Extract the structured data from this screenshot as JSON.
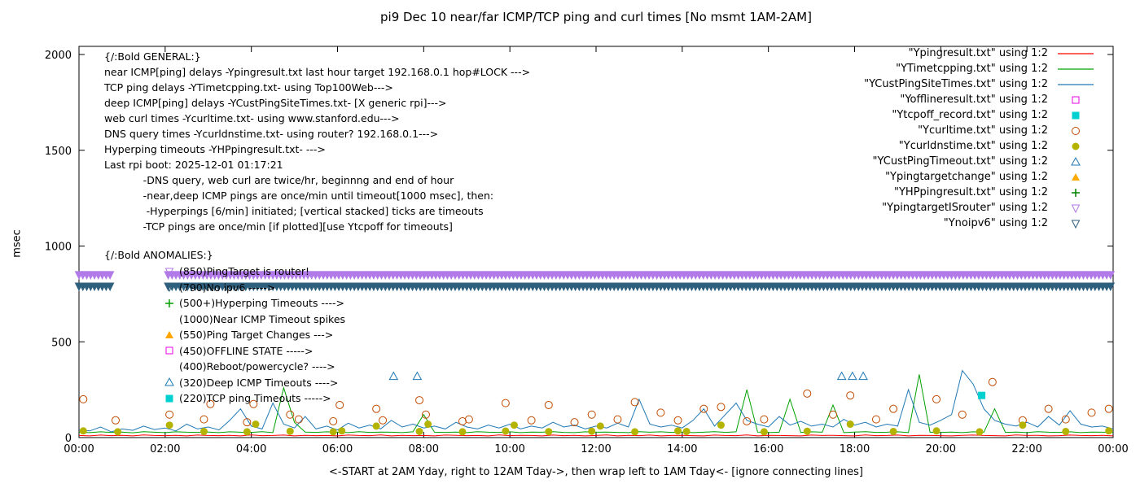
{
  "title": "pi9 Dec 10  near/far ICMP/TCP ping and curl times [No msmt 1AM-2AM]",
  "ylabel": "msec",
  "xlabel": "<-START at 2AM Yday, right to 12AM Tday->, then wrap left to 1AM Tday<- [ignore connecting lines]",
  "general": {
    "lines": [
      "{/:Bold GENERAL:}",
      "near ICMP[ping] delays -Ypingresult.txt last hour target 192.168.0.1 hop#LOCK --->",
      "TCP ping delays -YTimetcpping.txt- using Top100Web--->",
      "deep ICMP[ping] delays -YCustPingSiteTimes.txt- [X generic rpi]--->",
      "web curl times -Ycurltime.txt- using www.stanford.edu--->",
      "DNS query times -Ycurldnstime.txt- using router? 192.168.0.1--->",
      "Hyperping timeouts -YHPpingresult.txt- --->",
      "Last rpi boot: 2025-12-01 01:17:21",
      "            -DNS query, web curl are twice/hr, beginnng and end of hour",
      "            -near,deep ICMP pings are once/min until timeout[1000 msec], then:",
      "             -Hyperpings [6/min] initiated; [vertical stacked] ticks are timeouts",
      "            -TCP pings are once/min [if plotted][use Ytcpoff for timeouts]"
    ]
  },
  "anomalies": {
    "heading": "{/:Bold ANOMALIES:}",
    "items": [
      {
        "marker": "triangle-down-open",
        "color": "#b27ae8",
        "label": "(850)PingTarget is router!"
      },
      {
        "marker": "triangle-down-open",
        "color": "#2e5f7d",
        "label": "(790)No ipv6 ----->"
      },
      {
        "marker": "plus",
        "color": "#00a000",
        "label": "(500+)Hyperping Timeouts ---->"
      },
      {
        "marker": "none",
        "color": "",
        "label": "(1000)Near ICMP Timeout spikes"
      },
      {
        "marker": "triangle-up-filled",
        "color": "#ffa500",
        "label": "(550)Ping Target Changes --->"
      },
      {
        "marker": "square-open",
        "color": "#e800e8",
        "label": "(450)OFFLINE STATE ----->"
      },
      {
        "marker": "none",
        "color": "",
        "label": "(400)Reboot/powercycle? ---->"
      },
      {
        "marker": "triangle-up-open",
        "color": "#1f78b4",
        "label": "(320)Deep ICMP Timeouts ---->"
      },
      {
        "marker": "square-filled",
        "color": "#00d0d0",
        "label": "(220)TCP ping Timeouts ----->"
      }
    ]
  },
  "legend": [
    {
      "label": "\"Ypingresult.txt\" using 1:2",
      "type": "line",
      "color": "#ff0000"
    },
    {
      "label": "\"YTimetcpping.txt\" using 1:2",
      "type": "line",
      "color": "#00a000"
    },
    {
      "label": "\"YCustPingSiteTimes.txt\" using 1:2",
      "type": "line",
      "color": "#1f78b4"
    },
    {
      "label": "\"Yofflineresult.txt\" using 1:2",
      "type": "square-open",
      "color": "#e800e8"
    },
    {
      "label": "\"Ytcpoff_record.txt\" using 1:2",
      "type": "square-filled",
      "color": "#00d0d0"
    },
    {
      "label": "\"Ycurltime.txt\" using 1:2",
      "type": "circle-open",
      "color": "#c04a00"
    },
    {
      "label": "\"Ycurldnstime.txt\" using 1:2",
      "type": "circle-filled",
      "color": "#b4b400"
    },
    {
      "label": "\"YCustPingTimeout.txt\" using 1:2",
      "type": "triangle-up-open",
      "color": "#1f78b4"
    },
    {
      "label": "\"Ypingtargetchange\" using 1:2",
      "type": "triangle-up-filled",
      "color": "#ffaa00"
    },
    {
      "label": "\"YHPpingresult.txt\" using 1:2",
      "type": "plus",
      "color": "#008000"
    },
    {
      "label": "\"YpingtargetISrouter\" using 1:2",
      "type": "triangle-down-open",
      "color": "#b27ae8"
    },
    {
      "label": "\"Ynoipv6\" using 1:2",
      "type": "triangle-down-open",
      "color": "#2e5f7d"
    }
  ],
  "chart_data": {
    "type": "mixed line+scatter",
    "x_unit": "hours since 2AM yesterday, wrapped",
    "xlim": [
      0,
      24
    ],
    "ylim": [
      0,
      2000
    ],
    "xticks": [
      "00:00",
      "02:00",
      "04:00",
      "06:00",
      "08:00",
      "10:00",
      "12:00",
      "14:00",
      "16:00",
      "18:00",
      "20:00",
      "22:00",
      "00:00"
    ],
    "ytick_values": [
      0,
      500,
      1000,
      1500,
      2000
    ],
    "line_series": [
      {
        "name": "Ypingresult.txt",
        "color": "#ff0000",
        "x_start": 0,
        "x_step": 0.25,
        "values": [
          11,
          9,
          13,
          10,
          12,
          9,
          14,
          11,
          10,
          12,
          9,
          13,
          11,
          10,
          12,
          9,
          14,
          10,
          11,
          13,
          9,
          12,
          10,
          11,
          9,
          13,
          11,
          10,
          14,
          9,
          12,
          10,
          11,
          9,
          13,
          12,
          10,
          11,
          9,
          14,
          10,
          12,
          11,
          9,
          13,
          10,
          12,
          9,
          11,
          14,
          9,
          12,
          10,
          13,
          9,
          11,
          12,
          10,
          9,
          13,
          11,
          10,
          14,
          9,
          12,
          11,
          10,
          9,
          13,
          11,
          12,
          10,
          9,
          14,
          10,
          11,
          13,
          9,
          12,
          11,
          10,
          9,
          12,
          13,
          11,
          10,
          9,
          14,
          11,
          12,
          9,
          10,
          13,
          11,
          10,
          12,
          9
        ]
      },
      {
        "name": "YTimetcpping.txt",
        "color": "#00a000",
        "x_start": 0,
        "x_step": 0.25,
        "values": [
          28,
          26,
          30,
          27,
          29,
          25,
          31,
          28,
          26,
          30,
          28,
          27,
          29,
          26,
          30,
          28,
          27,
          31,
          26,
          260,
          80,
          29,
          27,
          30,
          28,
          26,
          31,
          27,
          29,
          28,
          26,
          30,
          120,
          28,
          27,
          29,
          26,
          31,
          28,
          27,
          30,
          26,
          29,
          28,
          31,
          27,
          26,
          30,
          28,
          29,
          27,
          26,
          31,
          28,
          30,
          27,
          29,
          26,
          28,
          31,
          27,
          30,
          250,
          29,
          26,
          28,
          200,
          27,
          30,
          28,
          170,
          26,
          29,
          31,
          27,
          28,
          30,
          26,
          330,
          28,
          27,
          29,
          26,
          30,
          28,
          150,
          27,
          29,
          26,
          31,
          28,
          27,
          30,
          26,
          29,
          28,
          27
        ]
      },
      {
        "name": "YCustPingSiteTimes.txt",
        "color": "#1f78b4",
        "x_start": 0,
        "x_step": 0.25,
        "values": [
          40,
          35,
          55,
          30,
          45,
          38,
          60,
          42,
          50,
          35,
          70,
          45,
          55,
          40,
          90,
          150,
          60,
          45,
          180,
          70,
          50,
          110,
          45,
          60,
          40,
          75,
          50,
          65,
          45,
          90,
          55,
          70,
          50,
          60,
          45,
          80,
          55,
          45,
          65,
          50,
          70,
          45,
          60,
          50,
          80,
          55,
          65,
          45,
          60,
          50,
          75,
          55,
          200,
          70,
          55,
          65,
          50,
          90,
          150,
          60,
          120,
          180,
          90,
          70,
          55,
          110,
          65,
          85,
          60,
          70,
          55,
          95,
          65,
          80,
          55,
          70,
          60,
          250,
          80,
          65,
          90,
          120,
          350,
          280,
          150,
          90,
          70,
          60,
          80,
          55,
          110,
          65,
          140,
          70,
          55,
          60,
          45
        ]
      }
    ],
    "marker_series": [
      {
        "name": "Yofflineresult.txt",
        "marker": "square-open",
        "color": "#e800e8",
        "points": []
      },
      {
        "name": "Ytcpoff_record.txt",
        "marker": "square-filled",
        "color": "#00d0d0",
        "points": [
          [
            20.95,
            220
          ]
        ]
      },
      {
        "name": "Ycurltime.txt",
        "marker": "circle-open",
        "color": "#c04a00",
        "points": [
          [
            0.1,
            200
          ],
          [
            0.85,
            90
          ],
          [
            2.1,
            120
          ],
          [
            2.9,
            95
          ],
          [
            3.05,
            175
          ],
          [
            3.9,
            80
          ],
          [
            4.05,
            175
          ],
          [
            4.9,
            120
          ],
          [
            5.1,
            95
          ],
          [
            5.9,
            85
          ],
          [
            6.05,
            170
          ],
          [
            6.9,
            150
          ],
          [
            7.05,
            90
          ],
          [
            7.9,
            195
          ],
          [
            8.05,
            120
          ],
          [
            8.9,
            85
          ],
          [
            9.05,
            95
          ],
          [
            9.9,
            180
          ],
          [
            10.5,
            90
          ],
          [
            10.9,
            170
          ],
          [
            11.5,
            80
          ],
          [
            11.9,
            120
          ],
          [
            12.5,
            95
          ],
          [
            12.9,
            185
          ],
          [
            13.5,
            130
          ],
          [
            13.9,
            90
          ],
          [
            14.5,
            150
          ],
          [
            14.9,
            160
          ],
          [
            15.5,
            85
          ],
          [
            15.9,
            95
          ],
          [
            16.9,
            230
          ],
          [
            17.5,
            120
          ],
          [
            17.9,
            220
          ],
          [
            18.5,
            95
          ],
          [
            18.9,
            150
          ],
          [
            19.9,
            200
          ],
          [
            20.5,
            120
          ],
          [
            21.2,
            290
          ],
          [
            21.9,
            90
          ],
          [
            22.5,
            150
          ],
          [
            22.9,
            95
          ],
          [
            23.5,
            130
          ],
          [
            23.9,
            150
          ]
        ]
      },
      {
        "name": "Ycurldnstime.txt",
        "marker": "circle-filled",
        "color": "#b4b400",
        "points": [
          [
            0.1,
            35
          ],
          [
            0.9,
            30
          ],
          [
            2.1,
            65
          ],
          [
            2.9,
            32
          ],
          [
            3.9,
            30
          ],
          [
            4.1,
            70
          ],
          [
            4.9,
            33
          ],
          [
            5.9,
            30
          ],
          [
            6.1,
            35
          ],
          [
            6.9,
            60
          ],
          [
            7.9,
            32
          ],
          [
            8.1,
            70
          ],
          [
            8.9,
            30
          ],
          [
            9.9,
            34
          ],
          [
            10.1,
            65
          ],
          [
            10.9,
            31
          ],
          [
            11.9,
            33
          ],
          [
            12.1,
            60
          ],
          [
            12.9,
            30
          ],
          [
            13.9,
            35
          ],
          [
            14.1,
            32
          ],
          [
            14.9,
            65
          ],
          [
            15.9,
            30
          ],
          [
            16.9,
            33
          ],
          [
            17.9,
            70
          ],
          [
            18.9,
            32
          ],
          [
            19.9,
            35
          ],
          [
            20.9,
            30
          ],
          [
            21.9,
            65
          ],
          [
            22.9,
            32
          ],
          [
            23.9,
            35
          ]
        ]
      },
      {
        "name": "YCustPingTimeout.txt",
        "marker": "triangle-up-open",
        "color": "#1f78b4",
        "points": [
          [
            7.3,
            320
          ],
          [
            7.85,
            320
          ],
          [
            17.7,
            320
          ],
          [
            17.95,
            320
          ],
          [
            18.2,
            320
          ]
        ]
      },
      {
        "name": "Ypingtargetchange",
        "marker": "triangle-up-filled",
        "color": "#ffaa00",
        "points": []
      },
      {
        "name": "YHPpingresult.txt",
        "marker": "plus",
        "color": "#008000",
        "points": []
      },
      {
        "name": "YpingtargetISrouter",
        "marker": "triangle-down-open",
        "color": "#b27ae8",
        "band": {
          "y": 850,
          "x_from": 0,
          "x_to": 24,
          "gaps": [
            [
              0.8,
              2.05
            ]
          ],
          "spacing": 0.09
        }
      },
      {
        "name": "Ynoipv6",
        "marker": "triangle-down-open",
        "color": "#2e5f7d",
        "band": {
          "y": 790,
          "x_from": 0,
          "x_to": 24,
          "gaps": [
            [
              0.8,
              2.05
            ]
          ],
          "spacing": 0.09
        }
      }
    ]
  }
}
